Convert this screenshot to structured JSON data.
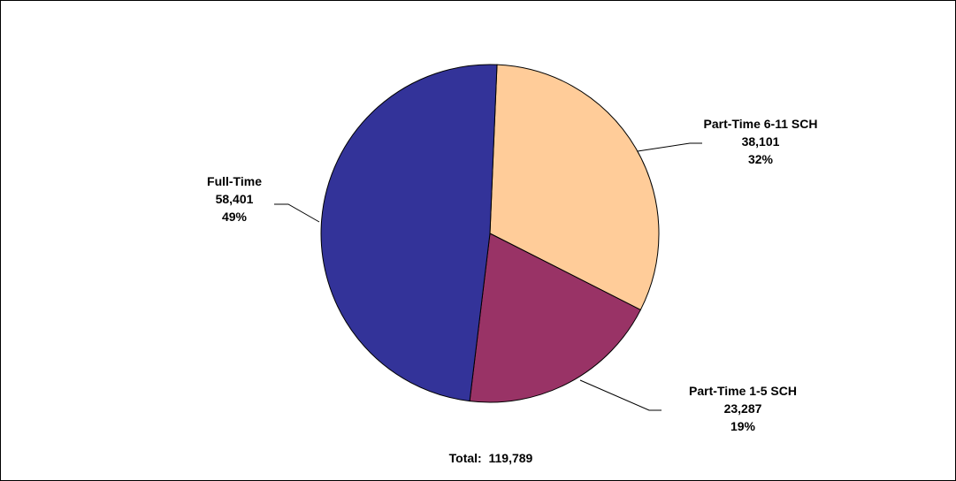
{
  "chart_data": {
    "type": "pie",
    "title": "",
    "start_angle_deg": 2.4,
    "slices": [
      {
        "name": "Part-Time 6-11 SCH",
        "value": 38101,
        "value_label": "38,101",
        "percent_label": "32%",
        "color": "#FFCC99"
      },
      {
        "name": "Part-Time 1-5 SCH",
        "value": 23287,
        "value_label": "23,287",
        "percent_label": "19%",
        "color": "#993366"
      },
      {
        "name": "Full-Time",
        "value": 58401,
        "value_label": "58,401",
        "percent_label": "49%",
        "color": "#333399"
      }
    ],
    "total_label": "Total:  119,789",
    "legend": "none",
    "grid": false
  }
}
